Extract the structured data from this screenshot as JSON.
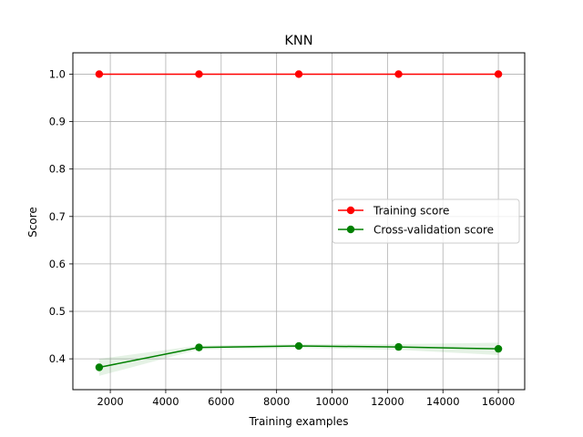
{
  "chart_data": {
    "type": "line",
    "title": "KNN",
    "xlabel": "Training examples",
    "ylabel": "Score",
    "xlim": [
      650,
      16950
    ],
    "ylim": [
      0.335,
      1.045
    ],
    "xticks": [
      2000,
      4000,
      6000,
      8000,
      10000,
      12000,
      14000,
      16000
    ],
    "xtick_labels": [
      "2000",
      "4000",
      "6000",
      "8000",
      "10000",
      "12000",
      "14000",
      "16000"
    ],
    "yticks": [
      0.4,
      0.5,
      0.6,
      0.7,
      0.8,
      0.9,
      1.0
    ],
    "ytick_labels": [
      "0.4",
      "0.5",
      "0.6",
      "0.7",
      "0.8",
      "0.9",
      "1.0"
    ],
    "grid": true,
    "legend_position": "center-right",
    "x": [
      1600,
      5200,
      8800,
      12400,
      16000
    ],
    "series": [
      {
        "name": "Training score",
        "color": "#ff0000",
        "marker": "circle",
        "values": [
          1.0,
          1.0,
          1.0,
          1.0,
          1.0
        ],
        "band_lower": [
          1.0,
          1.0,
          1.0,
          1.0,
          1.0
        ],
        "band_upper": [
          1.0,
          1.0,
          1.0,
          1.0,
          1.0
        ]
      },
      {
        "name": "Cross-validation score",
        "color": "#008000",
        "marker": "circle",
        "values": [
          0.382,
          0.424,
          0.427,
          0.425,
          0.421
        ],
        "band_lower": [
          0.364,
          0.42,
          0.423,
          0.419,
          0.408
        ],
        "band_upper": [
          0.4,
          0.428,
          0.431,
          0.431,
          0.434
        ]
      }
    ]
  }
}
